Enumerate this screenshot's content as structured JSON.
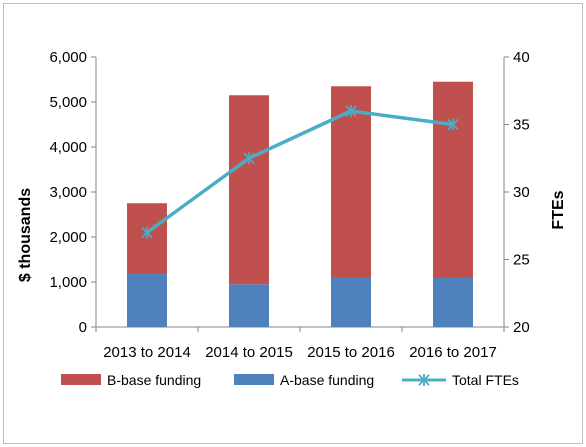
{
  "chart_data": {
    "type": "bar",
    "stacked": true,
    "categories": [
      "2013 to 2014",
      "2014 to 2015",
      "2015 to 2016",
      "2016 to 2017"
    ],
    "series": [
      {
        "name": "A-base funding",
        "type": "bar",
        "axis": "left",
        "values": [
          1200,
          950,
          1100,
          1100
        ],
        "color": "#4f81bd"
      },
      {
        "name": "B-base funding",
        "type": "bar",
        "axis": "left",
        "values": [
          1550,
          4200,
          4250,
          4350
        ],
        "color": "#c0504d"
      },
      {
        "name": "Total FTEs",
        "type": "line",
        "axis": "right",
        "values": [
          27,
          32.5,
          36,
          35
        ],
        "color": "#4bacc6"
      }
    ],
    "ylabel": "$ thousands",
    "y2label": "FTEs",
    "ylim": [
      0,
      6000
    ],
    "y2lim": [
      20,
      40
    ],
    "yticks": [
      "0",
      "1,000",
      "2,000",
      "3,000",
      "4,000",
      "5,000",
      "6,000"
    ],
    "y2ticks": [
      "20",
      "25",
      "30",
      "35",
      "40"
    ],
    "legend": {
      "placement": "bottom",
      "items": [
        "B-base funding",
        "A-base funding",
        "Total FTEs"
      ]
    },
    "grid": false
  }
}
